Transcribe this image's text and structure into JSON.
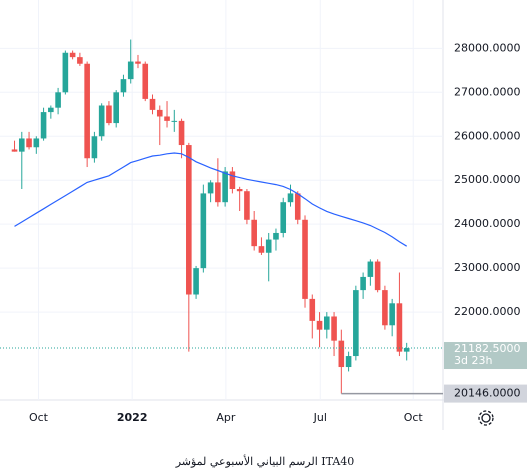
{
  "chart_data": {
    "type": "candlestick",
    "caption": "الرسم البياني الأسبوعي لمؤشر ITA40",
    "open": [
      25700,
      25650,
      25950,
      25750,
      25950,
      26550,
      26650,
      27000,
      27900,
      27800,
      27650,
      25500,
      26000,
      26700,
      26300,
      27000,
      27300,
      27700,
      27650,
      26850,
      26600,
      26450,
      26350,
      26350,
      25800,
      22400,
      23000,
      24700,
      24950,
      24500,
      25200,
      24800,
      24750,
      24100,
      23500,
      23350,
      23650,
      23800,
      24500,
      24700,
      24100,
      22300,
      21800,
      21600,
      21900,
      21350,
      20750,
      21000,
      22500,
      22800,
      23150,
      22500,
      21700,
      22200,
      21100
    ],
    "high": [
      25900,
      26100,
      26100,
      26000,
      26650,
      26700,
      27100,
      27950,
      27950,
      27900,
      27700,
      26100,
      26750,
      26800,
      27050,
      27400,
      28200,
      27850,
      27700,
      26950,
      26700,
      26800,
      26600,
      26400,
      25850,
      23050,
      24900,
      25000,
      25500,
      25300,
      25300,
      24850,
      24800,
      24300,
      23700,
      23800,
      23900,
      24600,
      24900,
      24750,
      24200,
      22400,
      22000,
      22000,
      22000,
      21600,
      21100,
      22600,
      22900,
      23200,
      23200,
      22600,
      22300,
      22900,
      21300
    ],
    "low": [
      25650,
      24800,
      25700,
      25600,
      25900,
      26400,
      26500,
      26950,
      27750,
      27600,
      25300,
      25400,
      25900,
      26250,
      26200,
      26900,
      27200,
      27550,
      26800,
      26500,
      25800,
      26200,
      26100,
      25500,
      21100,
      22300,
      22900,
      24500,
      24400,
      24400,
      24700,
      24300,
      24000,
      23400,
      23300,
      22700,
      23400,
      23700,
      24400,
      24000,
      22100,
      21400,
      21200,
      21400,
      21000,
      20146,
      20650,
      20900,
      22300,
      22600,
      22450,
      21600,
      21450,
      21000,
      20900
    ],
    "close": [
      25650,
      25950,
      25750,
      25950,
      26550,
      26650,
      27000,
      27900,
      27800,
      27650,
      25500,
      26000,
      26700,
      26300,
      27000,
      27300,
      27700,
      27650,
      26850,
      26600,
      26450,
      26350,
      26350,
      25800,
      22400,
      23000,
      24700,
      24950,
      24500,
      25200,
      24800,
      24750,
      24100,
      23500,
      23350,
      23650,
      23800,
      24500,
      24700,
      24100,
      22300,
      21800,
      21600,
      21900,
      21350,
      20750,
      21000,
      22500,
      22800,
      23150,
      22500,
      21700,
      22200,
      21100,
      21182.5
    ],
    "up_color": "#26a69a",
    "down_color": "#ef5350",
    "ma": {
      "color": "#2962ff",
      "values": [
        23950,
        24050,
        24150,
        24250,
        24350,
        24450,
        24550,
        24650,
        24750,
        24850,
        24950,
        25000,
        25050,
        25100,
        25200,
        25300,
        25400,
        25450,
        25500,
        25550,
        25570,
        25600,
        25620,
        25600,
        25520,
        25420,
        25350,
        25280,
        25220,
        25160,
        25100,
        25060,
        25020,
        24990,
        24960,
        24930,
        24900,
        24860,
        24790,
        24690,
        24580,
        24460,
        24370,
        24290,
        24230,
        24180,
        24130,
        24080,
        24030,
        23970,
        23890,
        23810,
        23710,
        23600,
        23500
      ]
    },
    "xlim": [
      -2,
      59
    ],
    "xticks": [
      {
        "value": 3.3,
        "label": "Oct"
      },
      {
        "value": 16.2,
        "label": "2022"
      },
      {
        "value": 29.1,
        "label": "Apr"
      },
      {
        "value": 42.1,
        "label": "Jul"
      },
      {
        "value": 54.9,
        "label": "Oct"
      }
    ],
    "ylim": [
      20000,
      29100
    ],
    "yticks": [
      {
        "value": 22000,
        "label": "22000.0000"
      },
      {
        "value": 23000,
        "label": "23000.0000"
      },
      {
        "value": 24000,
        "label": "24000.0000"
      },
      {
        "value": 25000,
        "label": "25000.0000"
      },
      {
        "value": 26000,
        "label": "26000.0000"
      },
      {
        "value": 27000,
        "label": "27000.0000"
      },
      {
        "value": 28000,
        "label": "28000.0000"
      }
    ],
    "last_price": {
      "value": 21182.5,
      "label": "21182.5000",
      "countdown": "3d 23h"
    },
    "low_marker": {
      "value": 20146,
      "label": "20146.0000",
      "from_index": 45
    }
  }
}
